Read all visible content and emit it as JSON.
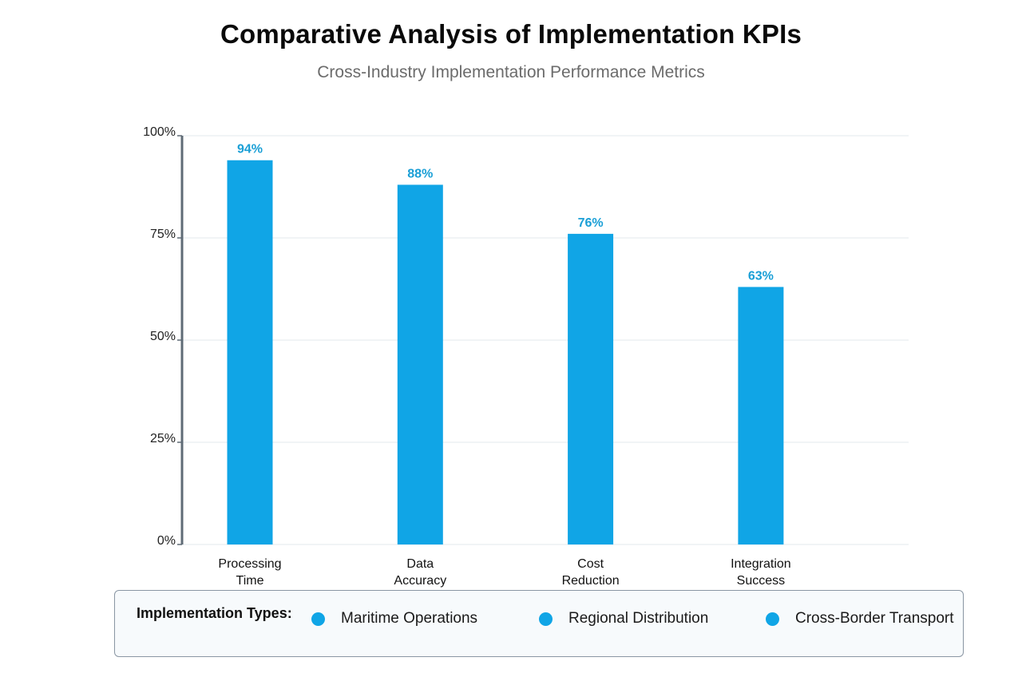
{
  "header": {
    "title": "Comparative Analysis of Implementation KPIs",
    "subtitle": "Cross-Industry Implementation Performance Metrics"
  },
  "colors": {
    "bar": "#10a5e6",
    "bar_label": "#1a9fd6",
    "grid": "#e3e8ec",
    "axis": "#5f6b76"
  },
  "chart_data": {
    "type": "bar",
    "title": "Comparative Analysis of Implementation KPIs",
    "subtitle": "Cross-Industry Implementation Performance Metrics",
    "xlabel": "",
    "ylabel": "",
    "ylim": [
      0,
      100
    ],
    "grid": true,
    "y_ticks": [
      {
        "value": 0,
        "label": "0%"
      },
      {
        "value": 25,
        "label": "25%"
      },
      {
        "value": 50,
        "label": "50%"
      },
      {
        "value": 75,
        "label": "75%"
      },
      {
        "value": 100,
        "label": "100%"
      }
    ],
    "categories": [
      [
        "Processing",
        "Time"
      ],
      [
        "Data",
        "Accuracy"
      ],
      [
        "Cost",
        "Reduction"
      ],
      [
        "Integration",
        "Success"
      ]
    ],
    "values": [
      94,
      88,
      76,
      63
    ],
    "data_labels": [
      "94%",
      "88%",
      "76%",
      "63%"
    ],
    "legend_placement": "bottom"
  },
  "legend": {
    "heading": "Implementation Types:",
    "items": [
      {
        "label": "Maritime Operations",
        "color": "#10a5e6"
      },
      {
        "label": "Regional Distribution",
        "color": "#10a5e6"
      },
      {
        "label": "Cross-Border Transport",
        "color": "#10a5e6"
      }
    ]
  }
}
